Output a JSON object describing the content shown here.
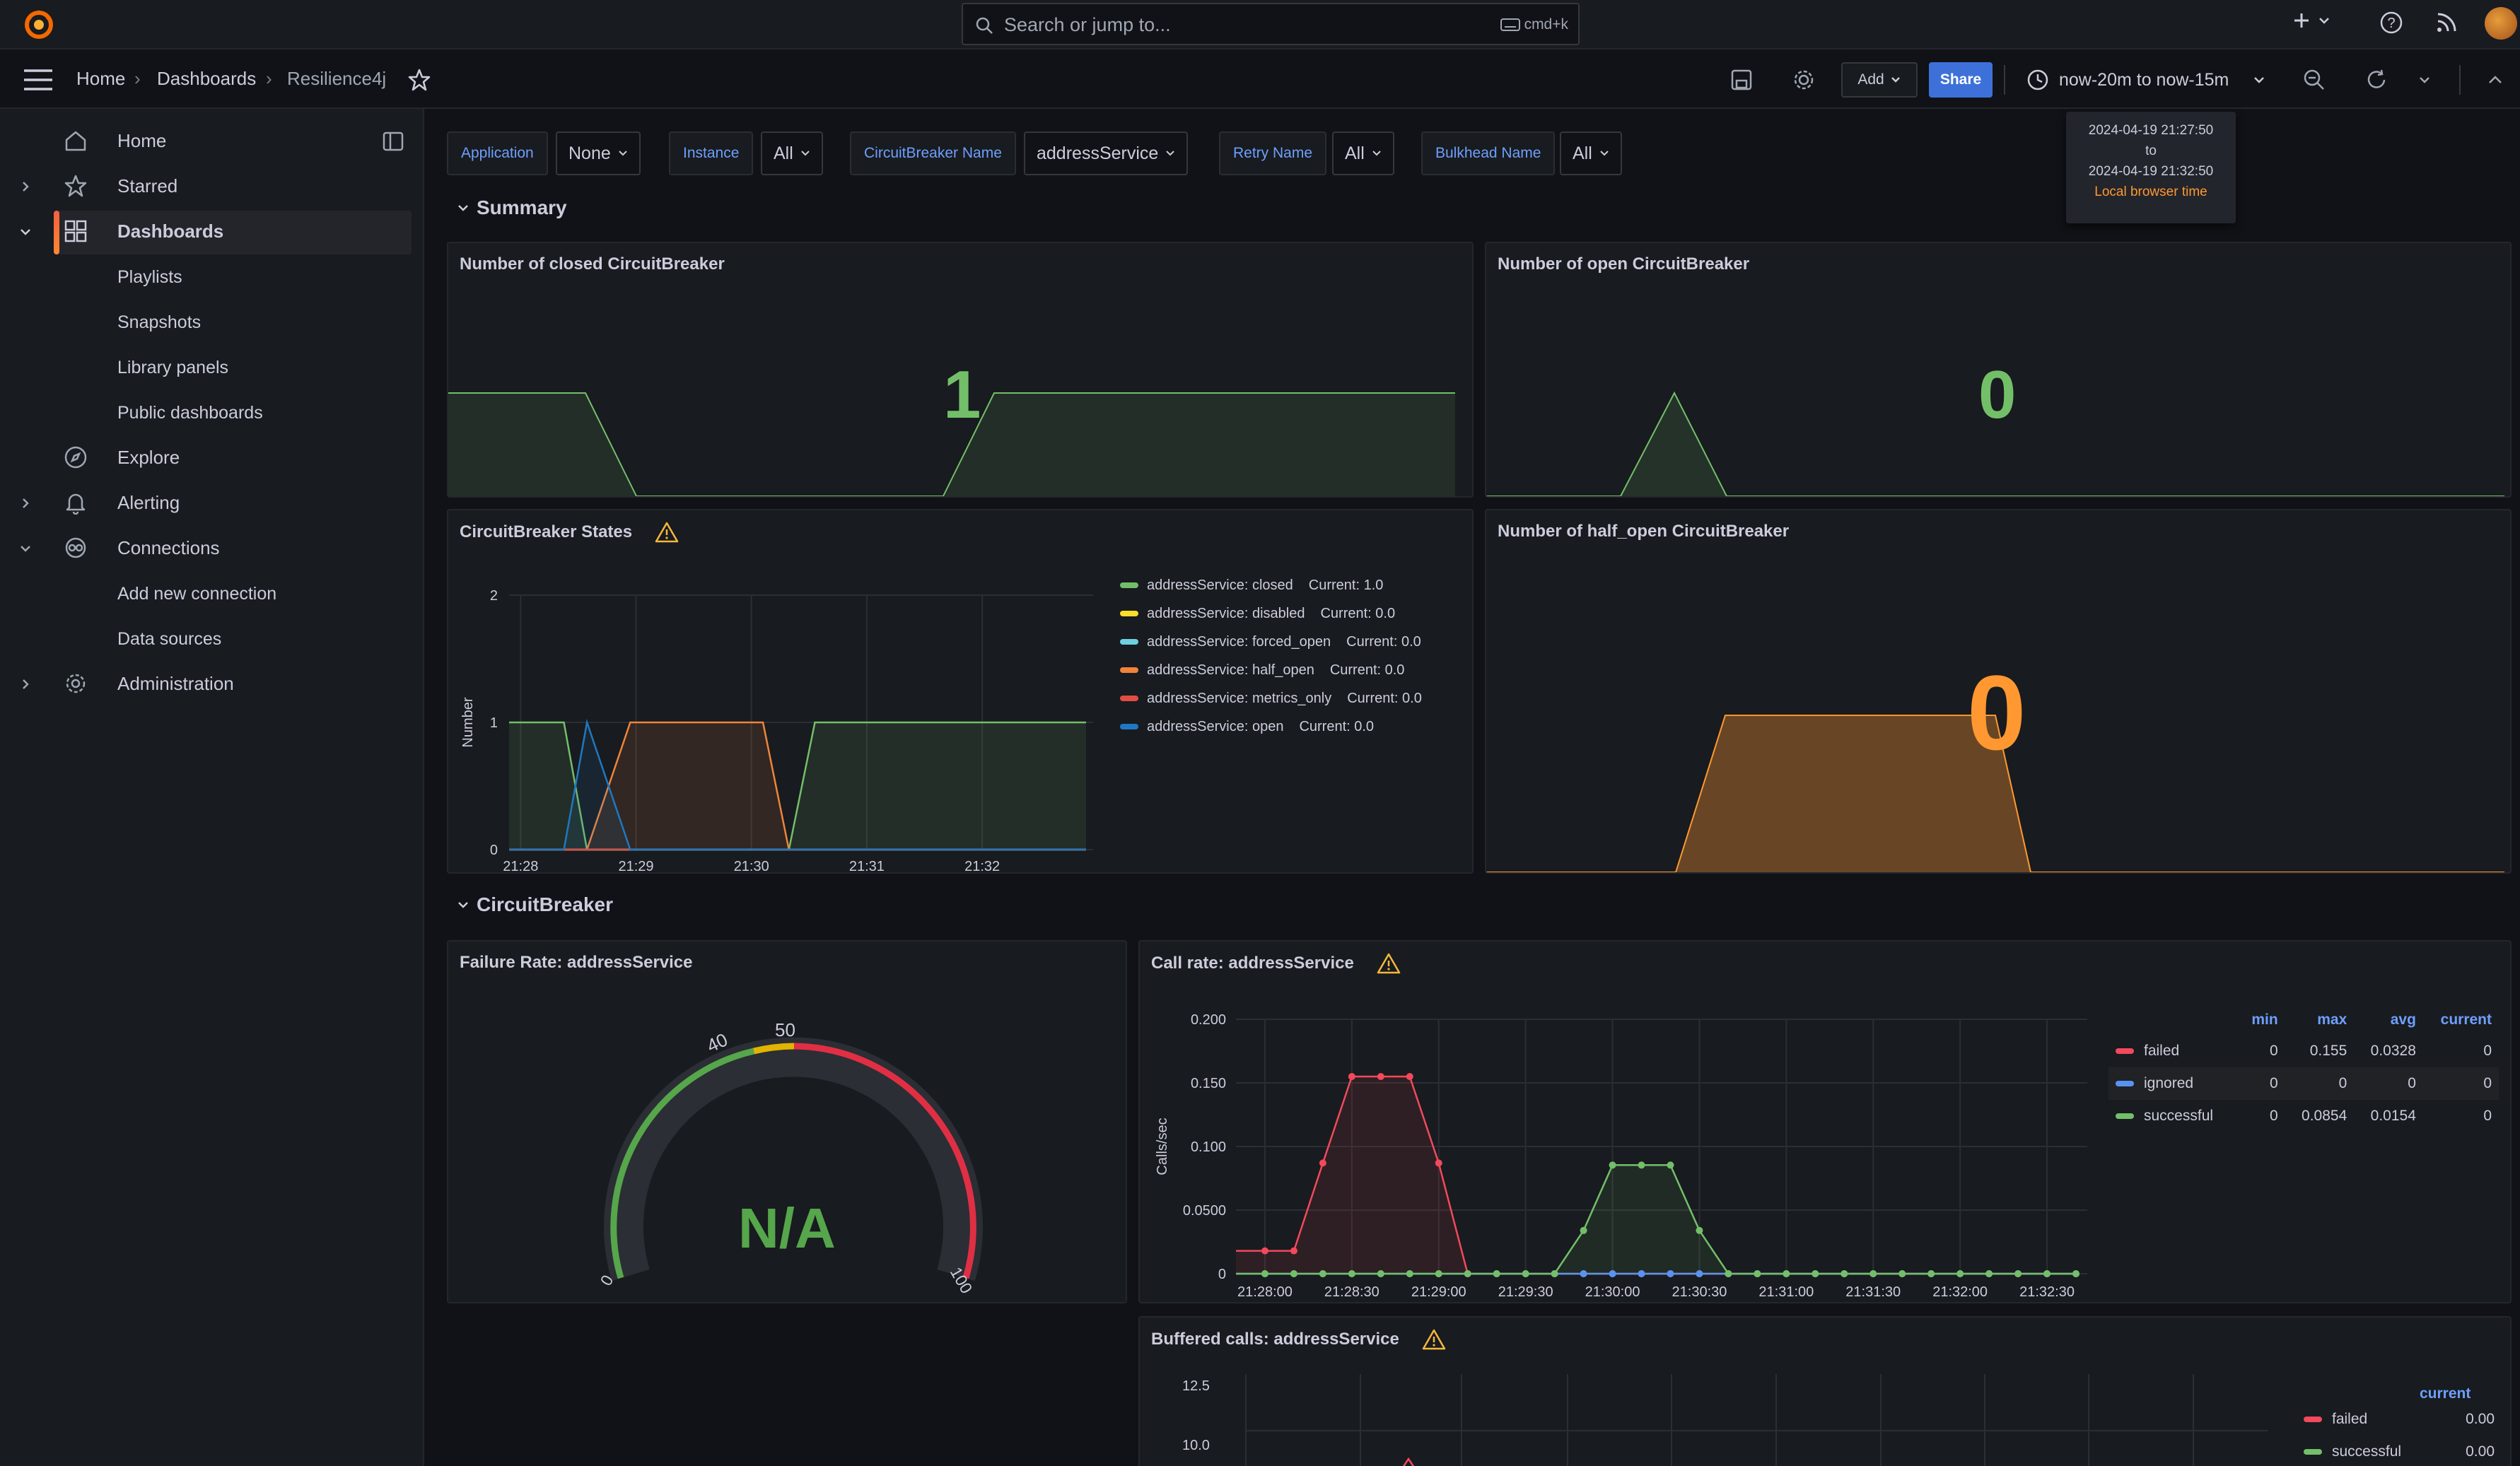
{
  "topbar": {
    "search_placeholder": "Search or jump to...",
    "search_shortcut": "cmd+k"
  },
  "breadcrumb": {
    "home": "Home",
    "dashboards": "Dashboards",
    "current": "Resilience4j"
  },
  "toolbar": {
    "add_label": "Add",
    "share_label": "Share",
    "time_range": "now-20m to now-15m"
  },
  "time_tooltip": {
    "from": "2024-04-19 21:27:50",
    "to_word": "to",
    "to": "2024-04-19 21:32:50",
    "tz": "Local browser time"
  },
  "sidebar": {
    "items": [
      {
        "label": "Home"
      },
      {
        "label": "Starred"
      },
      {
        "label": "Dashboards"
      },
      {
        "label": "Playlists"
      },
      {
        "label": "Snapshots"
      },
      {
        "label": "Library panels"
      },
      {
        "label": "Public dashboards"
      },
      {
        "label": "Explore"
      },
      {
        "label": "Alerting"
      },
      {
        "label": "Connections"
      },
      {
        "label": "Add new connection"
      },
      {
        "label": "Data sources"
      },
      {
        "label": "Administration"
      }
    ]
  },
  "variables": [
    {
      "label": "Application",
      "value": "None"
    },
    {
      "label": "Instance",
      "value": "All"
    },
    {
      "label": "CircuitBreaker Name",
      "value": "addressService"
    },
    {
      "label": "Retry Name",
      "value": "All"
    },
    {
      "label": "Bulkhead Name",
      "value": "All"
    }
  ],
  "rows": {
    "summary": "Summary",
    "circuitbreaker": "CircuitBreaker"
  },
  "panels": {
    "closed": {
      "title": "Number of closed CircuitBreaker",
      "value": "1",
      "color": "#73bf69"
    },
    "open": {
      "title": "Number of open CircuitBreaker",
      "value": "0",
      "color": "#73bf69"
    },
    "states": {
      "title": "CircuitBreaker States",
      "ylabel": "Number",
      "yticks": [
        "2",
        "1",
        "0"
      ],
      "xticks": [
        "21:28",
        "21:29",
        "21:30",
        "21:31",
        "21:32"
      ],
      "legend": [
        {
          "name": "addressService: closed",
          "current": "Current: 1.0",
          "color": "#73bf69"
        },
        {
          "name": "addressService: disabled",
          "current": "Current: 0.0",
          "color": "#fade2a"
        },
        {
          "name": "addressService: forced_open",
          "current": "Current: 0.0",
          "color": "#6ed0e0"
        },
        {
          "name": "addressService: half_open",
          "current": "Current: 0.0",
          "color": "#ef843c"
        },
        {
          "name": "addressService: metrics_only",
          "current": "Current: 0.0",
          "color": "#e24d42"
        },
        {
          "name": "addressService: open",
          "current": "Current: 0.0",
          "color": "#1f78c1"
        }
      ]
    },
    "half_open": {
      "title": "Number of half_open CircuitBreaker",
      "value": "0",
      "color": "#ff9830"
    },
    "failure_rate": {
      "title": "Failure Rate: addressService",
      "value": "N/A",
      "ticks": [
        "0",
        "40",
        "50",
        "100"
      ]
    },
    "call_rate": {
      "title": "Call rate: addressService",
      "ylabel": "Calls/sec",
      "yticks": [
        "0.200",
        "0.150",
        "0.100",
        "0.0500",
        "0"
      ],
      "xticks": [
        "21:28:00",
        "21:28:30",
        "21:29:00",
        "21:29:30",
        "21:30:00",
        "21:30:30",
        "21:31:00",
        "21:31:30",
        "21:32:00",
        "21:32:30"
      ],
      "table": {
        "headers": [
          "min",
          "max",
          "avg",
          "current"
        ],
        "rows": [
          {
            "name": "failed",
            "color": "#f2495c",
            "min": "0",
            "max": "0.155",
            "avg": "0.0328",
            "current": "0"
          },
          {
            "name": "ignored",
            "color": "#5794f2",
            "min": "0",
            "max": "0",
            "avg": "0",
            "current": "0"
          },
          {
            "name": "successful",
            "color": "#73bf69",
            "min": "0",
            "max": "0.0854",
            "avg": "0.0154",
            "current": "0"
          }
        ]
      }
    },
    "buffered": {
      "title": "Buffered calls: addressService",
      "yticks": [
        "12.5",
        "10.0"
      ],
      "table": {
        "header": "current",
        "rows": [
          {
            "name": "failed",
            "color": "#f2495c",
            "current": "0.00"
          },
          {
            "name": "successful",
            "color": "#73bf69",
            "current": "0.00"
          }
        ]
      }
    }
  },
  "chart_data": [
    {
      "type": "line",
      "title": "CircuitBreaker States",
      "ylabel": "Number",
      "ylim": [
        0,
        2
      ],
      "x": [
        "21:28",
        "21:28:30",
        "21:28:45",
        "21:29",
        "21:29:30",
        "21:30",
        "21:30:15",
        "21:30:30",
        "21:31",
        "21:32",
        "21:32:50"
      ],
      "series": [
        {
          "name": "addressService: closed",
          "values": [
            1,
            1,
            0,
            0,
            0,
            0,
            0,
            1,
            1,
            1,
            1
          ]
        },
        {
          "name": "addressService: disabled",
          "values": [
            0,
            0,
            0,
            0,
            0,
            0,
            0,
            0,
            0,
            0,
            0
          ]
        },
        {
          "name": "addressService: forced_open",
          "values": [
            0,
            0,
            0,
            0,
            0,
            0,
            0,
            0,
            0,
            0,
            0
          ]
        },
        {
          "name": "addressService: half_open",
          "values": [
            0,
            0,
            0,
            1,
            1,
            1,
            0,
            0,
            0,
            0,
            0
          ]
        },
        {
          "name": "addressService: metrics_only",
          "values": [
            0,
            0,
            0,
            0,
            0,
            0,
            0,
            0,
            0,
            0,
            0
          ]
        },
        {
          "name": "addressService: open",
          "values": [
            0,
            0,
            1,
            0,
            0,
            0,
            0,
            0,
            0,
            0,
            0
          ]
        }
      ]
    },
    {
      "type": "line",
      "title": "Call rate: addressService",
      "ylabel": "Calls/sec",
      "ylim": [
        0,
        0.2
      ],
      "x": [
        "21:27:50",
        "21:28:00",
        "21:28:10",
        "21:28:20",
        "21:28:30",
        "21:28:40",
        "21:28:50",
        "21:29:00",
        "21:29:10",
        "21:29:20",
        "21:29:30",
        "21:29:40",
        "21:29:50",
        "21:30:00",
        "21:30:10",
        "21:30:20",
        "21:30:30",
        "21:30:40",
        "21:30:50",
        "21:31:00",
        "21:31:10",
        "21:31:20",
        "21:31:30",
        "21:31:40",
        "21:31:50",
        "21:32:00",
        "21:32:10",
        "21:32:20",
        "21:32:30",
        "21:32:40"
      ],
      "series": [
        {
          "name": "failed",
          "values": [
            0.018,
            0.018,
            0.018,
            0.087,
            0.155,
            0.155,
            0.155,
            0.087,
            0,
            0,
            0,
            0,
            0,
            0,
            0,
            0,
            0,
            0,
            0,
            0,
            0,
            0,
            0,
            0,
            0,
            0,
            0,
            0,
            0,
            0
          ]
        },
        {
          "name": "ignored",
          "values": [
            0,
            0,
            0,
            0,
            0,
            0,
            0,
            0,
            0,
            0,
            0,
            0,
            0,
            0,
            0,
            0,
            0,
            0,
            0,
            0,
            0,
            0,
            0,
            0,
            0,
            0,
            0,
            0,
            0,
            0
          ]
        },
        {
          "name": "successful",
          "values": [
            0,
            0,
            0,
            0,
            0,
            0,
            0,
            0,
            0,
            0,
            0,
            0,
            0.034,
            0.0854,
            0.0854,
            0.0854,
            0.034,
            0,
            0,
            0,
            0,
            0,
            0,
            0,
            0,
            0,
            0,
            0,
            0,
            0
          ]
        }
      ]
    }
  ]
}
